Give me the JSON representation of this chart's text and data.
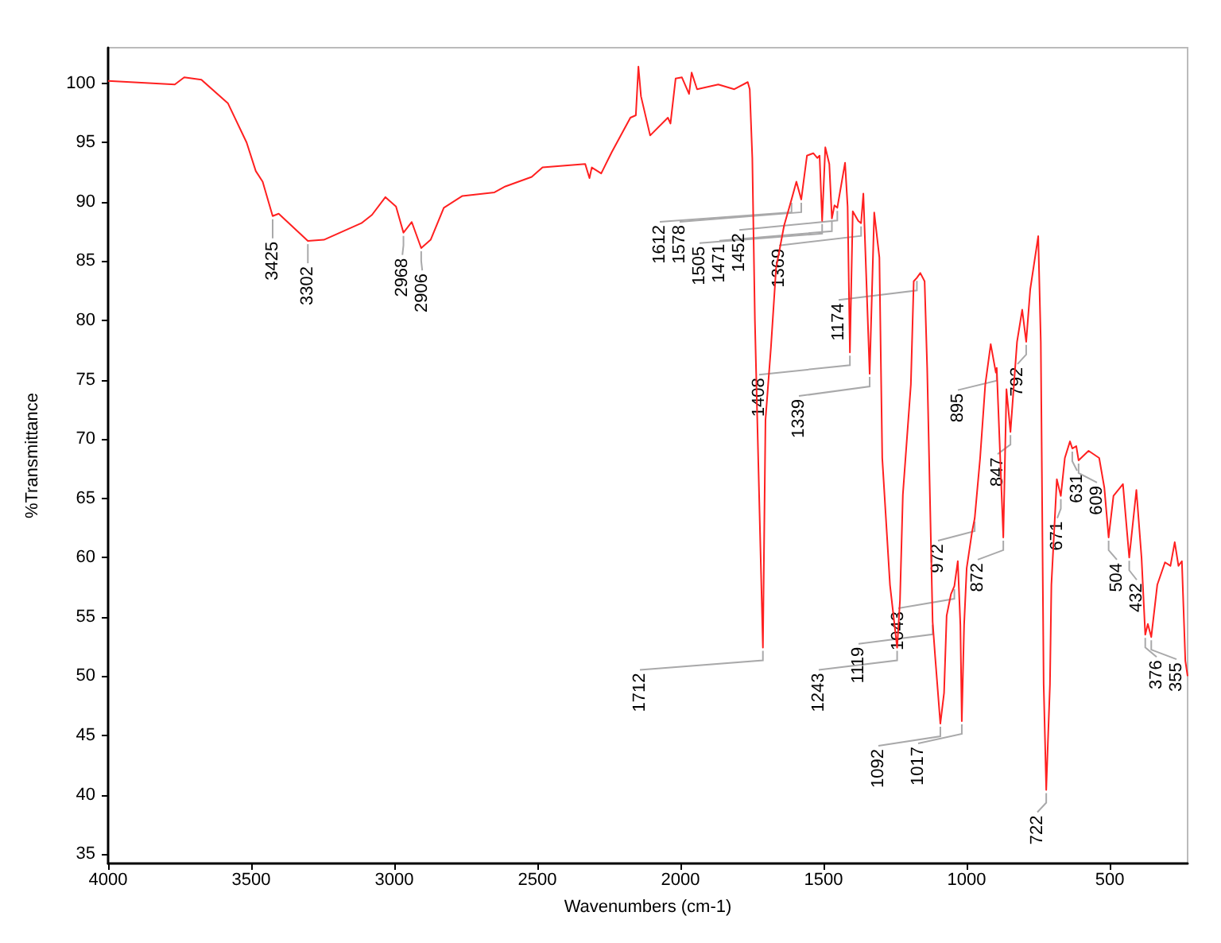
{
  "chart_data": {
    "type": "line",
    "xlabel": "Wavenumbers (cm-1)",
    "ylabel": "%Transmittance",
    "xlim": [
      4000,
      228
    ],
    "xticks": [
      4000,
      3500,
      3000,
      2500,
      2000,
      1500,
      1000,
      500
    ],
    "ylim": [
      34.2,
      103
    ],
    "yticks": [
      35,
      40,
      45,
      50,
      55,
      60,
      65,
      70,
      75,
      80,
      85,
      90,
      95,
      100
    ],
    "grid": false,
    "marker": "none",
    "line_style": "solid",
    "series": [
      {
        "color": "#ff2020",
        "x": [
          4000,
          3767,
          3734,
          3674,
          3581,
          3516,
          3484,
          3460,
          3425,
          3404,
          3302,
          3246,
          3115,
          3078,
          3031,
          2994,
          2968,
          2939,
          2906,
          2873,
          2827,
          2762,
          2650,
          2612,
          2520,
          2482,
          2333,
          2318,
          2310,
          2277,
          2240,
          2175,
          2156,
          2147,
          2138,
          2106,
          2044,
          2035,
          2017,
          1995,
          1970,
          1961,
          1942,
          1868,
          1812,
          1765,
          1758,
          1749,
          1740,
          1728,
          1712,
          1703,
          1684,
          1666,
          1638,
          1612,
          1595,
          1578,
          1558,
          1536,
          1522,
          1514,
          1505,
          1494,
          1480,
          1471,
          1462,
          1452,
          1425,
          1416,
          1408,
          1398,
          1379,
          1369,
          1361,
          1339,
          1323,
          1305,
          1295,
          1268,
          1243,
          1233,
          1223,
          1195,
          1185,
          1174,
          1162,
          1147,
          1138,
          1119,
          1110,
          1092,
          1079,
          1070,
          1055,
          1043,
          1031,
          1022,
          1017,
          1009,
          1000,
          981,
          972,
          953,
          935,
          916,
          898,
          895,
          872,
          861,
          847,
          824,
          806,
          792,
          778,
          750,
          741,
          731,
          722,
          709,
          704,
          685,
          671,
          657,
          639,
          631,
          617,
          609,
          574,
          537,
          519,
          504,
          487,
          454,
          432,
          407,
          389,
          376,
          367,
          355,
          334,
          307,
          288,
          273,
          260,
          248,
          236,
          228
        ],
        "values": [
          100.2,
          99.9,
          100.5,
          100.3,
          98.3,
          95.0,
          92.6,
          91.7,
          88.8,
          89.0,
          86.7,
          86.8,
          88.2,
          88.9,
          90.4,
          89.6,
          87.4,
          88.3,
          86.1,
          86.8,
          89.5,
          90.5,
          90.8,
          91.3,
          92.1,
          92.9,
          93.2,
          92.0,
          92.9,
          92.4,
          94.2,
          97.1,
          97.3,
          101.4,
          98.9,
          95.6,
          97.1,
          96.6,
          100.4,
          100.5,
          99.1,
          100.9,
          99.5,
          99.9,
          99.5,
          100.1,
          99.5,
          93.7,
          80.0,
          68.0,
          52.4,
          71.6,
          77.7,
          84.4,
          88.0,
          90.2,
          91.7,
          90.2,
          93.9,
          94.1,
          93.7,
          93.9,
          88.4,
          94.6,
          93.2,
          88.6,
          89.7,
          89.5,
          93.3,
          89.6,
          77.3,
          89.2,
          88.4,
          88.2,
          90.7,
          75.5,
          89.1,
          85.3,
          68.4,
          57.7,
          52.4,
          56.4,
          65.3,
          74.6,
          83.3,
          83.6,
          84.0,
          83.3,
          76.0,
          54.6,
          51.6,
          46.0,
          48.6,
          55.1,
          56.9,
          57.6,
          59.7,
          54.3,
          46.2,
          54.3,
          59.1,
          62.2,
          63.3,
          68.4,
          74.6,
          78.0,
          75.6,
          76.0,
          61.7,
          74.2,
          70.6,
          78.2,
          80.9,
          78.2,
          82.6,
          87.1,
          78.2,
          49.3,
          40.4,
          49.3,
          57.7,
          66.6,
          65.2,
          68.4,
          69.8,
          69.2,
          69.4,
          68.2,
          69.0,
          68.4,
          65.9,
          61.7,
          65.2,
          66.2,
          60.0,
          65.7,
          60.0,
          53.5,
          54.4,
          53.3,
          57.7,
          59.6,
          59.3,
          61.3,
          59.3,
          59.7,
          51.3,
          50.0
        ]
      }
    ],
    "annotations": [
      {
        "text": "3425",
        "x": 3425,
        "y": 88.8
      },
      {
        "text": "3302",
        "x": 3302,
        "y": 86.7
      },
      {
        "text": "2968",
        "x": 2968,
        "y": 87.4
      },
      {
        "text": "2906",
        "x": 2906,
        "y": 86.1
      },
      {
        "text": "1712",
        "x": 1712,
        "y": 52.4
      },
      {
        "text": "1612",
        "x": 1612,
        "y": 90.2
      },
      {
        "text": "1578",
        "x": 1578,
        "y": 90.2
      },
      {
        "text": "1505",
        "x": 1505,
        "y": 88.4
      },
      {
        "text": "1471",
        "x": 1471,
        "y": 88.6
      },
      {
        "text": "1452",
        "x": 1452,
        "y": 89.5
      },
      {
        "text": "1408",
        "x": 1408,
        "y": 77.3
      },
      {
        "text": "1369",
        "x": 1369,
        "y": 88.2
      },
      {
        "text": "1339",
        "x": 1339,
        "y": 75.5
      },
      {
        "text": "1243",
        "x": 1243,
        "y": 52.4
      },
      {
        "text": "1174",
        "x": 1174,
        "y": 83.6
      },
      {
        "text": "1119",
        "x": 1119,
        "y": 54.6
      },
      {
        "text": "1092",
        "x": 1092,
        "y": 46.0
      },
      {
        "text": "1043",
        "x": 1043,
        "y": 57.6
      },
      {
        "text": "1017",
        "x": 1017,
        "y": 46.2
      },
      {
        "text": "972",
        "x": 972,
        "y": 63.3
      },
      {
        "text": "895",
        "x": 895,
        "y": 76.0
      },
      {
        "text": "872",
        "x": 872,
        "y": 61.7
      },
      {
        "text": "847",
        "x": 847,
        "y": 70.6
      },
      {
        "text": "792",
        "x": 792,
        "y": 78.2
      },
      {
        "text": "722",
        "x": 722,
        "y": 40.4
      },
      {
        "text": "671",
        "x": 671,
        "y": 65.2
      },
      {
        "text": "631",
        "x": 631,
        "y": 69.2
      },
      {
        "text": "609",
        "x": 609,
        "y": 68.2
      },
      {
        "text": "504",
        "x": 504,
        "y": 61.7
      },
      {
        "text": "432",
        "x": 432,
        "y": 60.0
      },
      {
        "text": "376",
        "x": 376,
        "y": 53.5
      },
      {
        "text": "355",
        "x": 355,
        "y": 53.3
      }
    ]
  }
}
